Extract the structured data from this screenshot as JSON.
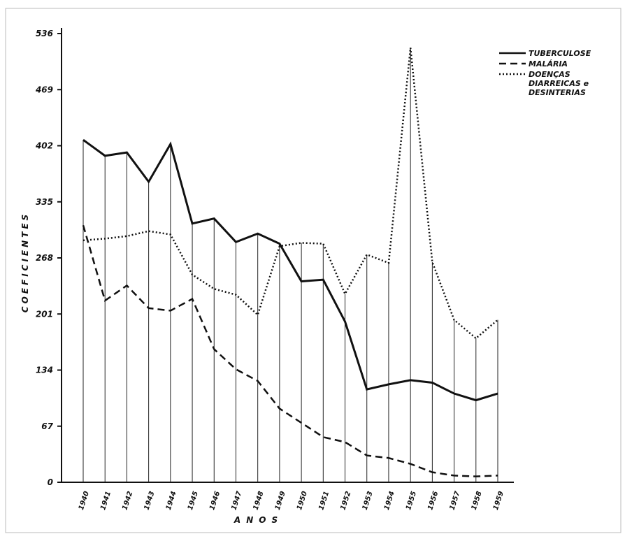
{
  "chart_data": {
    "type": "line",
    "y_label": "COEFICIENTES",
    "x_label": "ANOS",
    "categories": [
      "1940",
      "1941",
      "1942",
      "1943",
      "1944",
      "1945",
      "1946",
      "1947",
      "1948",
      "1949",
      "1950",
      "1951",
      "1952",
      "1953",
      "1954",
      "1955",
      "1956",
      "1957",
      "1958",
      "1959"
    ],
    "series": [
      {
        "name": "TUBERCULOSE",
        "color": "#111111",
        "dash": "solid",
        "values": [
          409,
          390,
          394,
          359,
          404,
          309,
          315,
          287,
          297,
          285,
          240,
          242,
          192,
          111,
          117,
          122,
          119,
          106,
          98,
          106
        ]
      },
      {
        "name": "MALÁRIA",
        "color": "#111111",
        "dash": "dashed",
        "values": [
          307,
          217,
          235,
          208,
          205,
          219,
          159,
          135,
          121,
          88,
          71,
          54,
          48,
          32,
          29,
          22,
          12,
          8,
          7,
          8
        ]
      },
      {
        "name": "DOENÇAS DIARREICAS e DESINTERIAS",
        "color": "#111111",
        "dash": "dotted",
        "values": [
          289,
          291,
          294,
          300,
          296,
          248,
          231,
          224,
          200,
          282,
          286,
          285,
          225,
          272,
          262,
          519,
          263,
          194,
          172,
          194
        ]
      }
    ],
    "ylim": [
      0,
      536
    ],
    "yticks": [
      0,
      67,
      134,
      201,
      268,
      335,
      402,
      469,
      536
    ],
    "legend": "top-right"
  }
}
